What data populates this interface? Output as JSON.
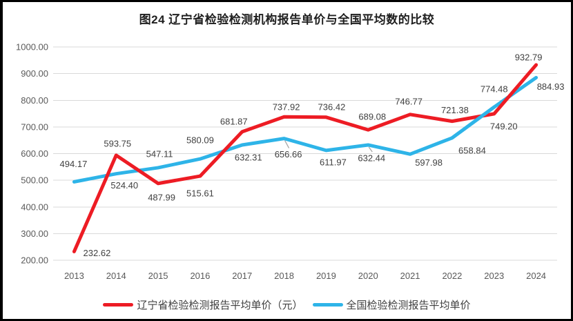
{
  "chart_data": {
    "type": "line",
    "title": "图24 辽宁省检验检测机构报告单价与全国平均数的比较",
    "categories": [
      "2013",
      "2014",
      "2015",
      "2016",
      "2017",
      "2018",
      "2019",
      "2020",
      "2021",
      "2022",
      "2023",
      "2024"
    ],
    "series": [
      {
        "name": "辽宁省检验检测报告平均单价（元）",
        "color": "#ed1c24",
        "values": [
          232.62,
          593.75,
          487.99,
          515.61,
          681.87,
          737.92,
          736.42,
          689.08,
          746.77,
          721.38,
          749.2,
          932.79
        ]
      },
      {
        "name": "全国检验检测报告平均单价",
        "color": "#2eb4e8",
        "values": [
          494.17,
          524.4,
          547.11,
          580.09,
          632.31,
          656.66,
          611.97,
          632.44,
          597.98,
          658.84,
          774.48,
          884.93
        ]
      }
    ],
    "ylim": [
      200,
      1000
    ],
    "ytick_step": 100,
    "ytick_decimals": 2,
    "label_decimals": 2,
    "grid": true,
    "legend_position": "bottom",
    "label_offsets": [
      [
        [
          33,
          2
        ],
        [
          2,
          -17
        ],
        [
          5,
          20
        ],
        [
          0,
          25
        ],
        [
          -12,
          -15
        ],
        [
          3,
          -14
        ],
        [
          8,
          -15
        ],
        [
          6,
          -19
        ],
        [
          -2,
          -19
        ],
        [
          4,
          -16
        ],
        [
          14,
          18
        ],
        [
          -11,
          -11
        ]
      ],
      [
        [
          -1,
          -26
        ],
        [
          12,
          17
        ],
        [
          2,
          -20
        ],
        [
          0,
          -27
        ],
        [
          9,
          18
        ],
        [
          6,
          23
        ],
        [
          10,
          17
        ],
        [
          5,
          19
        ],
        [
          27,
          12
        ],
        [
          29,
          18
        ],
        [
          0,
          -26
        ],
        [
          21,
          13
        ]
      ]
    ],
    "leader_lines": [
      {
        "series": 1,
        "point": 5
      },
      {
        "series": 1,
        "point": 7
      }
    ],
    "colors": {
      "grid": "#d9d9d9",
      "axis_text": "#595959",
      "label_text": "#404040",
      "leader": "#a6a6a6"
    }
  }
}
